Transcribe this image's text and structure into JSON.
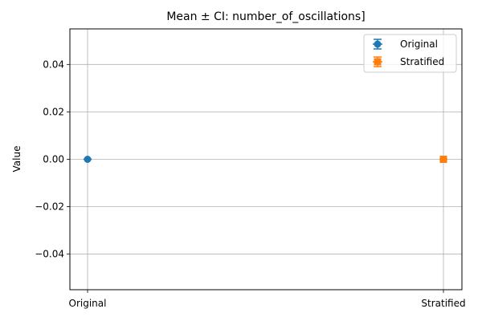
{
  "chart_data": {
    "type": "scatter",
    "title": "Mean ± CI: number_of_oscillations]",
    "xlabel": "",
    "ylabel": "Value",
    "categories": [
      "Original",
      "Stratified"
    ],
    "ylim": [
      -0.055,
      0.055
    ],
    "yticks": [
      -0.04,
      -0.02,
      0.0,
      0.02,
      0.04
    ],
    "ytick_labels": [
      "−0.04",
      "−0.02",
      "0.00",
      "0.02",
      "0.04"
    ],
    "grid": true,
    "legend_position": "top-right",
    "series": [
      {
        "name": "Original",
        "category": "Original",
        "mean": 0.0,
        "ci_low": 0.0,
        "ci_high": 0.0,
        "marker": "circle",
        "color": "#1f77b4"
      },
      {
        "name": "Stratified",
        "category": "Stratified",
        "mean": 0.0,
        "ci_low": 0.0,
        "ci_high": 0.0,
        "marker": "square",
        "color": "#ff7f0e"
      }
    ]
  }
}
